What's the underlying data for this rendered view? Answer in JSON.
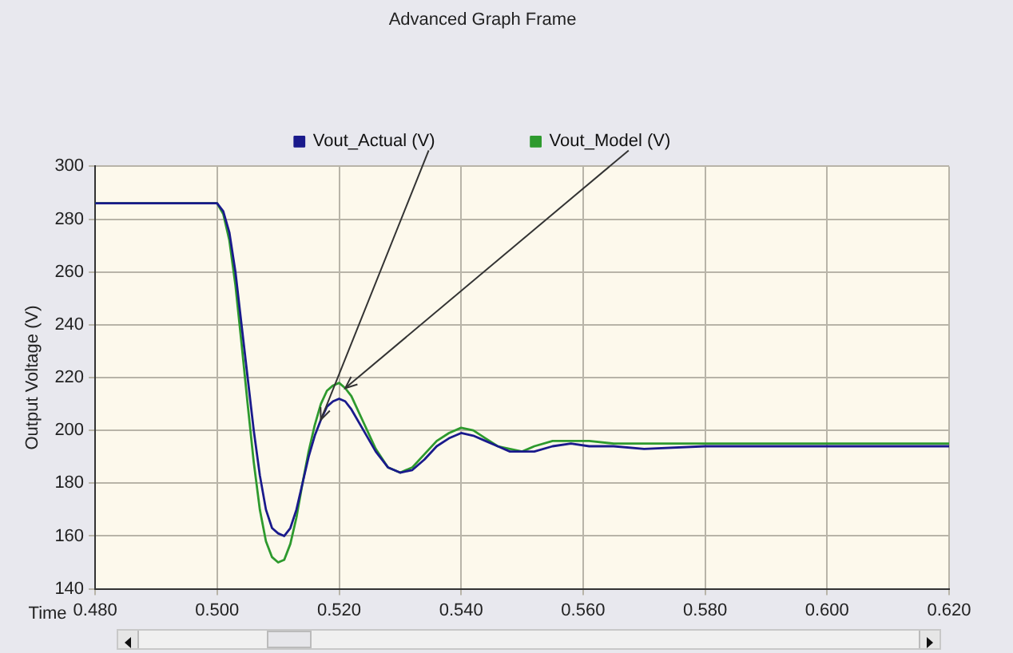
{
  "chart_data": {
    "type": "line",
    "title": "Advanced Graph Frame",
    "xlabel": "Time",
    "ylabel": "Output Voltage (V)",
    "xlim": [
      0.48,
      0.62
    ],
    "xticks": [
      {
        "value": 0.48,
        "label": "0.480"
      },
      {
        "value": 0.5,
        "label": "0.500"
      },
      {
        "value": 0.52,
        "label": "0.520"
      },
      {
        "value": 0.54,
        "label": "0.540"
      },
      {
        "value": 0.56,
        "label": "0.560"
      },
      {
        "value": 0.58,
        "label": "0.580"
      },
      {
        "value": 0.6,
        "label": "0.600"
      },
      {
        "value": 0.62,
        "label": "0.620"
      }
    ],
    "ylim": [
      140,
      300
    ],
    "yticks": [
      140,
      160,
      180,
      200,
      220,
      240,
      260,
      280,
      300
    ],
    "grid": true,
    "legend": "top",
    "marker": "none",
    "line_style": "solid",
    "series": [
      {
        "name": "Vout_Actual (V)",
        "color": "#1a1a8c",
        "x": [
          0.48,
          0.5,
          0.501,
          0.502,
          0.503,
          0.504,
          0.505,
          0.506,
          0.507,
          0.508,
          0.509,
          0.51,
          0.511,
          0.512,
          0.513,
          0.514,
          0.515,
          0.516,
          0.517,
          0.518,
          0.519,
          0.52,
          0.521,
          0.522,
          0.524,
          0.526,
          0.528,
          0.53,
          0.532,
          0.534,
          0.536,
          0.538,
          0.54,
          0.542,
          0.544,
          0.546,
          0.548,
          0.55,
          0.552,
          0.555,
          0.558,
          0.561,
          0.565,
          0.57,
          0.58,
          0.59,
          0.6,
          0.62
        ],
        "values": [
          286,
          286,
          283,
          275,
          260,
          240,
          220,
          200,
          183,
          170,
          163,
          161,
          160,
          163,
          170,
          180,
          190,
          198,
          204,
          209,
          211,
          212,
          211,
          208,
          200,
          192,
          186,
          184,
          185,
          189,
          194,
          197,
          199,
          198,
          196,
          194,
          192,
          192,
          192,
          194,
          195,
          194,
          194,
          193,
          194,
          194,
          194,
          194
        ]
      },
      {
        "name": "Vout_Model (V)",
        "color": "#2e9a2e",
        "x": [
          0.48,
          0.5,
          0.501,
          0.502,
          0.503,
          0.504,
          0.505,
          0.506,
          0.507,
          0.508,
          0.509,
          0.51,
          0.511,
          0.512,
          0.513,
          0.514,
          0.515,
          0.516,
          0.517,
          0.518,
          0.519,
          0.52,
          0.521,
          0.522,
          0.524,
          0.526,
          0.528,
          0.53,
          0.532,
          0.534,
          0.536,
          0.538,
          0.54,
          0.542,
          0.544,
          0.546,
          0.548,
          0.55,
          0.552,
          0.555,
          0.558,
          0.561,
          0.565,
          0.57,
          0.58,
          0.6,
          0.62
        ],
        "values": [
          286,
          286,
          282,
          272,
          255,
          233,
          210,
          188,
          170,
          158,
          152,
          150,
          151,
          157,
          167,
          180,
          192,
          202,
          210,
          215,
          217,
          218,
          216,
          213,
          203,
          193,
          186,
          184,
          186,
          191,
          196,
          199,
          201,
          200,
          197,
          194,
          193,
          192,
          194,
          196,
          196,
          196,
          195,
          195,
          195,
          195,
          195
        ]
      }
    ]
  }
}
